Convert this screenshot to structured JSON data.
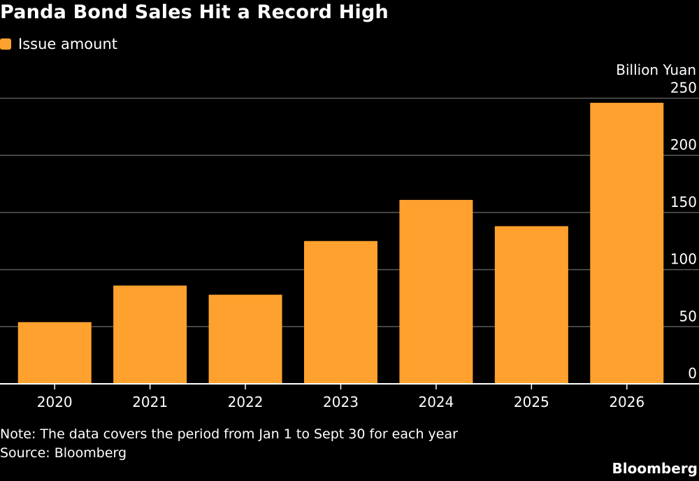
{
  "title": "Panda Bond Sales Hit a Record High",
  "legend": {
    "label": "Issue amount"
  },
  "unit_label": "Billion Yuan",
  "note": "Note: The data covers the period from Jan 1 to Sept 30 for each year",
  "source": "Source: Bloomberg",
  "brand": "Bloomberg",
  "colors": {
    "bar": "#ffa12e",
    "background": "#000000",
    "grid": "#5a5a5a",
    "axis": "#ffffff",
    "text": "#ffffff"
  },
  "chart_data": {
    "type": "bar",
    "title": "Panda Bond Sales Hit a Record High",
    "ylabel": "Billion Yuan",
    "xlabel": "",
    "categories": [
      "2020",
      "2021",
      "2022",
      "2023",
      "2024",
      "2025",
      "2026"
    ],
    "series": [
      {
        "name": "Issue amount",
        "values": [
          54,
          86,
          78,
          125,
          161,
          138,
          246
        ]
      }
    ],
    "ylim": [
      0,
      250
    ],
    "yticks": [
      0,
      50,
      100,
      150,
      200,
      250
    ],
    "grid": true,
    "y_axis_side": "right",
    "legend_position": "top-left"
  }
}
